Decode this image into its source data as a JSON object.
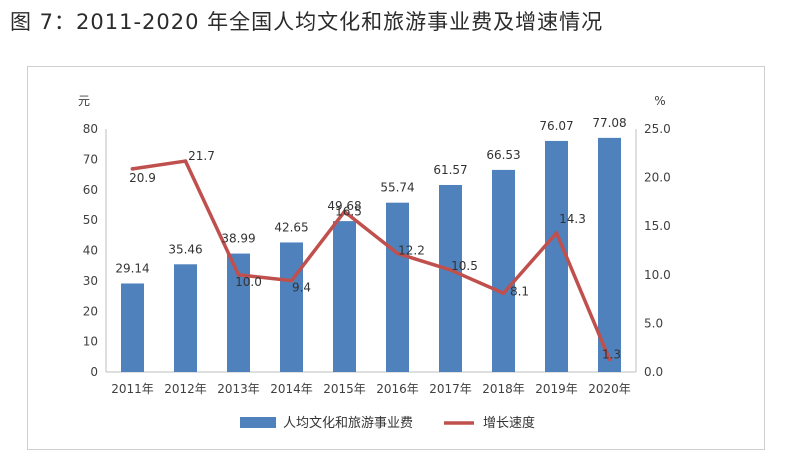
{
  "figure": {
    "title": "图 7：2011-2020 年全国人均文化和旅游事业费及增速情况"
  },
  "chart_data": {
    "type": "bar",
    "categories": [
      "2011年",
      "2012年",
      "2013年",
      "2014年",
      "2015年",
      "2016年",
      "2017年",
      "2018年",
      "2019年",
      "2020年"
    ],
    "series": [
      {
        "name": "人均文化和旅游事业费",
        "type": "bar",
        "axis": "left",
        "color": "#4f81bd",
        "values": [
          29.14,
          35.46,
          38.99,
          42.65,
          49.68,
          55.74,
          61.57,
          66.53,
          76.07,
          77.08
        ],
        "labels": [
          "29.14",
          "35.46",
          "38.99",
          "42.65",
          "49.68",
          "55.74",
          "61.57",
          "66.53",
          "76.07",
          "77.08"
        ]
      },
      {
        "name": "增长速度",
        "type": "line",
        "axis": "right",
        "color": "#c0504d",
        "values": [
          20.9,
          21.7,
          10.0,
          9.4,
          16.5,
          12.2,
          10.5,
          8.1,
          14.3,
          1.3
        ],
        "labels": [
          "20.9",
          "21.7",
          "10.0",
          "9.4",
          "16.5",
          "12.2",
          "10.5",
          "8.1",
          "14.3",
          "1.3"
        ]
      }
    ],
    "y_left": {
      "unit": "元",
      "ylim": [
        0,
        80
      ],
      "ticks": [
        "0",
        "10",
        "20",
        "30",
        "40",
        "50",
        "60",
        "70",
        "80"
      ]
    },
    "y_right": {
      "unit": "%",
      "ylim": [
        0,
        25
      ],
      "ticks": [
        "0.0",
        "5.0",
        "10.0",
        "15.0",
        "20.0",
        "25.0"
      ]
    },
    "grid": false,
    "legend": "bottom"
  }
}
